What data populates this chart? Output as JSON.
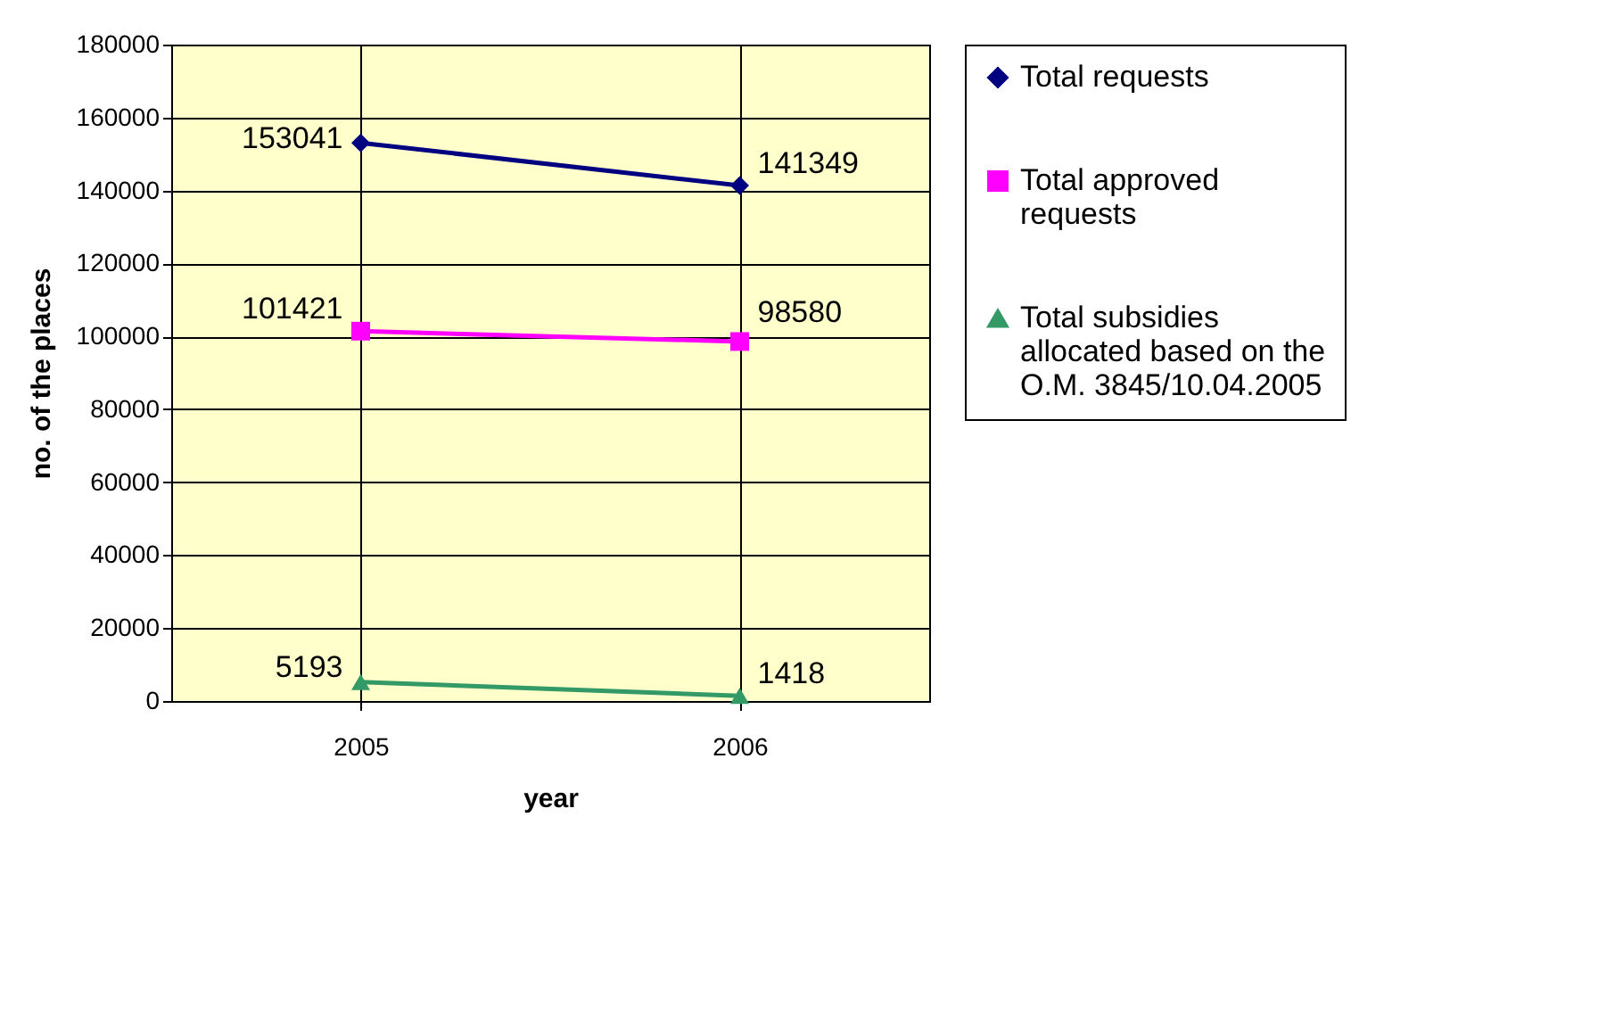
{
  "chart_data": {
    "type": "line",
    "xlabel": "year",
    "ylabel": "no. of the places",
    "categories": [
      "2005",
      "2006"
    ],
    "series": [
      {
        "name": "Total requests",
        "color": "#000080",
        "marker": "diamond",
        "values": [
          153041,
          141349
        ]
      },
      {
        "name": "Total approved requests",
        "color": "#ff00ff",
        "marker": "square",
        "values": [
          101421,
          98580
        ]
      },
      {
        "name": "Total subsidies allocated based on the O.M. 3845/10.04.2005",
        "color": "#339966",
        "marker": "triangle",
        "values": [
          5193,
          1418
        ]
      }
    ],
    "ylim": [
      0,
      180000
    ],
    "yticks": [
      0,
      20000,
      40000,
      60000,
      80000,
      100000,
      120000,
      140000,
      160000,
      180000
    ],
    "grid": true,
    "legend": "right",
    "data_labels": true
  }
}
